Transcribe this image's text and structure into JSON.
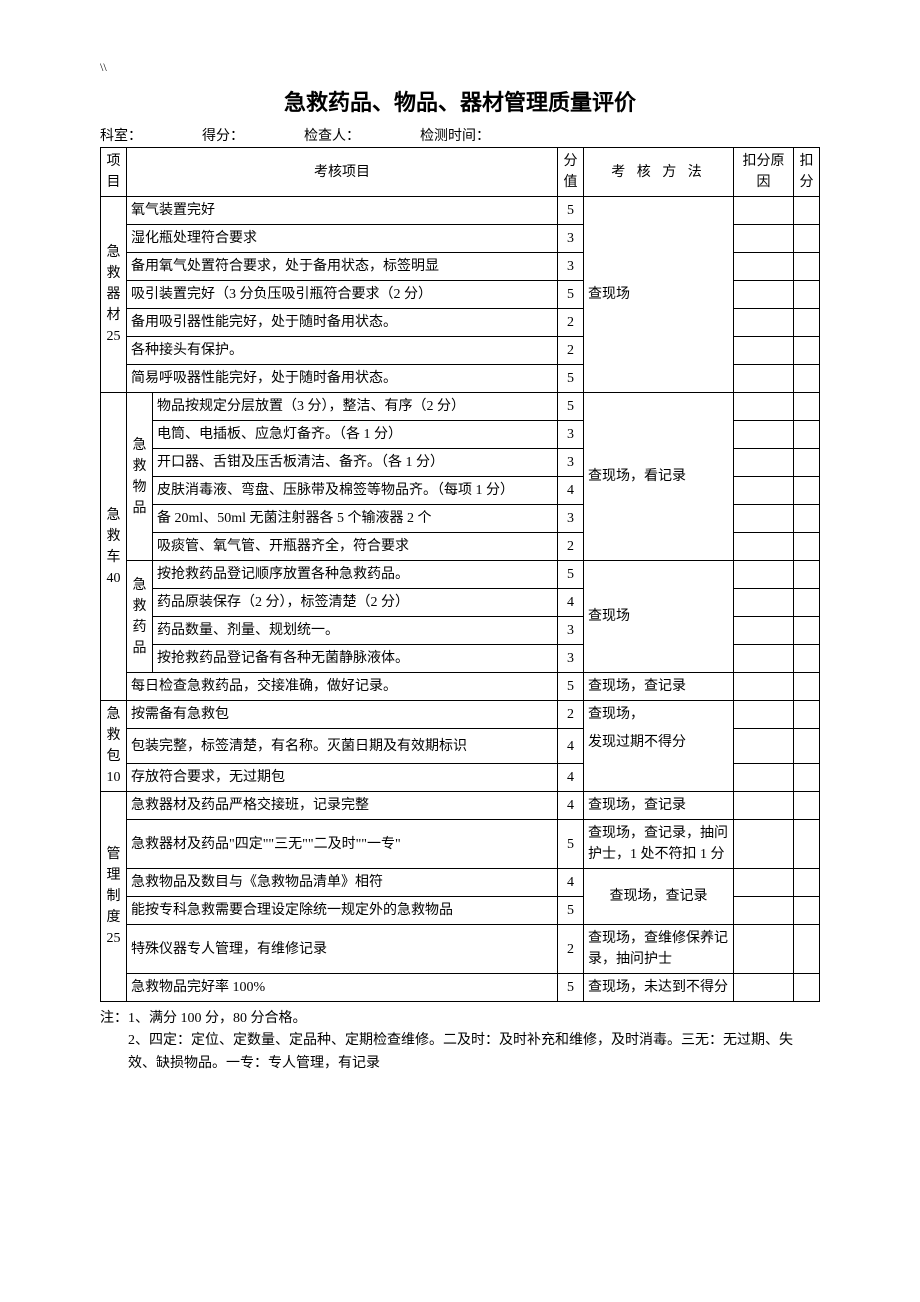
{
  "headerMark": "\\\\",
  "title": "急救药品、物品、器材管理质量评价",
  "formHeader": {
    "dept": "科室：",
    "score": "得分：",
    "inspector": "检查人：",
    "time": "检测时间："
  },
  "columns": {
    "category": "项目",
    "item": "考核项目",
    "score": "分值",
    "method": "考 核 方 法",
    "reason": "扣分原因",
    "deduct": "扣分"
  },
  "sections": [
    {
      "name": "急救器材25",
      "method": "查现场",
      "rows": [
        {
          "item": "氧气装置完好",
          "score": "5"
        },
        {
          "item": "湿化瓶处理符合要求",
          "score": "3"
        },
        {
          "item": "备用氧气处置符合要求，处于备用状态，标签明显",
          "score": "3"
        },
        {
          "item": "吸引装置完好（3 分负压吸引瓶符合要求（2 分）",
          "score": "5"
        },
        {
          "item": "备用吸引器性能完好，处于随时备用状态。",
          "score": "2"
        },
        {
          "item": "各种接头有保护。",
          "score": "2"
        },
        {
          "item": "简易呼吸器性能完好，处于随时备用状态。",
          "score": "5"
        }
      ]
    },
    {
      "name": "急救车40",
      "groups": [
        {
          "sub": "急救物品",
          "method": "查现场，看记录",
          "rows": [
            {
              "item": "物品按规定分层放置（3 分），整洁、有序（2 分）",
              "score": "5"
            },
            {
              "item": "电筒、电插板、应急灯备齐。（各 1 分）",
              "score": "3"
            },
            {
              "item": "开口器、舌钳及压舌板清洁、备齐。（各 1 分）",
              "score": "3"
            },
            {
              "item": "皮肤消毒液、弯盘、压脉带及棉签等物品齐。（每项 1 分）",
              "score": "4"
            },
            {
              "item": "备 20ml、50ml 无菌注射器各 5 个输液器 2 个",
              "score": "3"
            },
            {
              "item": "吸痰管、氧气管、开瓶器齐全，符合要求",
              "score": "2"
            }
          ]
        },
        {
          "sub": "急救药品",
          "method": "查现场",
          "rows": [
            {
              "item": "按抢救药品登记顺序放置各种急救药品。",
              "score": "5"
            },
            {
              "item": "药品原装保存（2 分），标签清楚（2 分）",
              "score": "4"
            },
            {
              "item": "药品数量、剂量、规划统一。",
              "score": "3"
            },
            {
              "item": "按抢救药品登记备有各种无菌静脉液体。",
              "score": "3"
            }
          ]
        }
      ],
      "lastRow": {
        "item": "每日检查急救药品，交接准确，做好记录。",
        "score": "5",
        "method": "查现场，查记录"
      }
    },
    {
      "name": "急救包10",
      "rows": [
        {
          "item": "按需备有急救包",
          "score": "2",
          "method": "查现场，"
        },
        {
          "item": "包装完整，标签清楚，有名称。灭菌日期及有效期标识",
          "score": "4",
          "method": "发现过期不得分"
        },
        {
          "item": "存放符合要求，无过期包",
          "score": "4"
        }
      ]
    },
    {
      "name": "管理制度25",
      "rows": [
        {
          "item": "急救器材及药品严格交接班，记录完整",
          "score": "4",
          "method": "查现场，查记录"
        },
        {
          "item": "急救器材及药品\"四定\"\"三无\"\"二及时\"\"一专\"",
          "score": "5",
          "method": "查现场，查记录，抽问护士，1 处不符扣 1 分"
        },
        {
          "item": "急救物品及数目与《急救物品清单》相符",
          "score": "4",
          "method": " 查现场，查记录",
          "methodRowspan": 2
        },
        {
          "item": "能按专科急救需要合理设定除统一规定外的急救物品",
          "score": "5"
        },
        {
          "item": "特殊仪器专人管理，有维修记录",
          "score": "2",
          "method": "查现场，查维修保养记录，抽问护士"
        },
        {
          "item": "急救物品完好率 100%",
          "score": "5",
          "method": "查现场，未达到不得分"
        }
      ]
    }
  ],
  "notes": {
    "line1": "注：1、满分 100 分，80 分合格。",
    "line2": "2、四定：定位、定数量、定品种、定期检查维修。二及时：及时补充和维修，及时消毒。三无：无过期、失效、缺损物品。一专：专人管理，有记录"
  }
}
